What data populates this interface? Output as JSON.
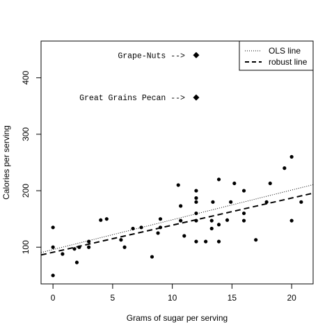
{
  "chart_data": {
    "type": "scatter",
    "title": "",
    "xlabel": "Grams of sugar per serving",
    "ylabel": "Calories per serving",
    "xlim": [
      -1.0,
      21.8
    ],
    "ylim": [
      35,
      465
    ],
    "xticks": [
      0,
      5,
      10,
      15,
      20
    ],
    "yticks": [
      100,
      200,
      300,
      400
    ],
    "grid": false,
    "legend_position": "top-right",
    "series": [
      {
        "points": [
          [
            0,
            50
          ],
          [
            0,
            100
          ],
          [
            0,
            135
          ],
          [
            0.8,
            88
          ],
          [
            1.8,
            97
          ],
          [
            2.0,
            73
          ],
          [
            2.2,
            100
          ],
          [
            3.0,
            100
          ],
          [
            3.0,
            110
          ],
          [
            4.0,
            148
          ],
          [
            4.5,
            150
          ],
          [
            5.7,
            113
          ],
          [
            6.0,
            100
          ],
          [
            6.7,
            133
          ],
          [
            7.4,
            135
          ],
          [
            8.3,
            83
          ],
          [
            8.8,
            125
          ],
          [
            9.0,
            135
          ],
          [
            9.0,
            150
          ],
          [
            10.5,
            210
          ],
          [
            10.7,
            173
          ],
          [
            10.7,
            147
          ],
          [
            11.0,
            120
          ],
          [
            12.0,
            200
          ],
          [
            12.0,
            187
          ],
          [
            12.0,
            180
          ],
          [
            12.0,
            160
          ],
          [
            12.0,
            147
          ],
          [
            12.0,
            110
          ],
          [
            12.8,
            110
          ],
          [
            13.3,
            147
          ],
          [
            13.3,
            133
          ],
          [
            13.4,
            180
          ],
          [
            13.9,
            220
          ],
          [
            13.9,
            140
          ],
          [
            13.9,
            110
          ],
          [
            14.6,
            148
          ],
          [
            14.9,
            180
          ],
          [
            15.2,
            213
          ],
          [
            16.0,
            200
          ],
          [
            16.0,
            160
          ],
          [
            16.0,
            147
          ],
          [
            17.0,
            113
          ],
          [
            17.9,
            180
          ],
          [
            18.2,
            213
          ],
          [
            19.4,
            240
          ],
          [
            20.0,
            260
          ],
          [
            20.0,
            147
          ],
          [
            20.8,
            180
          ]
        ]
      }
    ],
    "highlighted": [
      {
        "label": "Grape-Nuts -->",
        "x": 12.0,
        "y": 440
      },
      {
        "label": "Great Grains Pecan -->",
        "x": 12.0,
        "y": 365
      }
    ],
    "lines": [
      {
        "name": "OLS line",
        "style": "dotted",
        "intercept": 95.8,
        "slope": 5.27
      },
      {
        "name": "robust line",
        "style": "dashed",
        "intercept": 91.0,
        "slope": 4.8
      }
    ]
  }
}
